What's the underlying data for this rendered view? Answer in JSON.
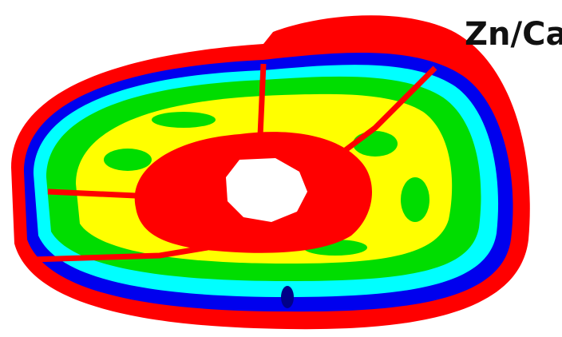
{
  "label": "Zn/Ca"
}
